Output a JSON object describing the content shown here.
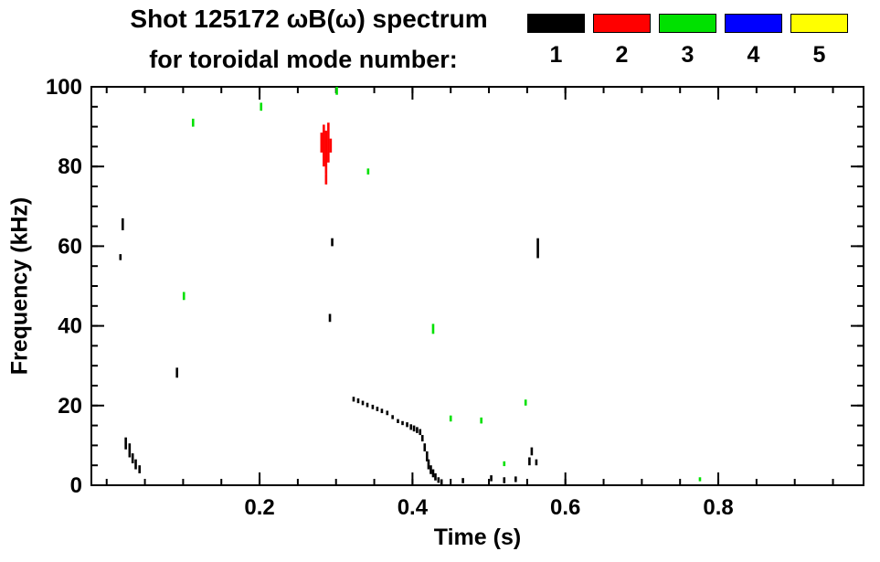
{
  "header": {
    "title_line1": "Shot 125172 ωB(ω) spectrum",
    "title_line2": "for toroidal mode number:"
  },
  "legend": {
    "entries": [
      {
        "label": "1",
        "color": "#000000"
      },
      {
        "label": "2",
        "color": "#ff0000"
      },
      {
        "label": "3",
        "color": "#00e100"
      },
      {
        "label": "4",
        "color": "#0000ff"
      },
      {
        "label": "5",
        "color": "#ffff00"
      }
    ]
  },
  "chart_data": {
    "type": "scatter",
    "title": "Shot 125172 ωB(ω) spectrum for toroidal mode number: 1 2 3 4 5",
    "xlabel": "Time (s)",
    "ylabel": "Frequency (kHz)",
    "xlim": [
      -0.02,
      0.99
    ],
    "ylim": [
      0,
      100
    ],
    "xticks": [
      0.2,
      0.4,
      0.6,
      0.8
    ],
    "xtick_labels": [
      "0.2",
      "0.4",
      "0.6",
      "0.8"
    ],
    "x_minor_step": 0.05,
    "yticks": [
      0,
      20,
      40,
      60,
      80,
      100
    ],
    "ytick_labels": [
      "0",
      "20",
      "40",
      "60",
      "80",
      "100"
    ],
    "y_minor_step": 5,
    "grid": false,
    "legend_position": "top-right",
    "segment_format": "[time_s, freq_low_kHz, freq_high_kHz]",
    "series": [
      {
        "mode": 1,
        "name": "1",
        "color": "#000000",
        "segments": [
          [
            0.021,
            64,
            67
          ],
          [
            0.018,
            56.5,
            58
          ],
          [
            0.025,
            9,
            12
          ],
          [
            0.03,
            7,
            10.5
          ],
          [
            0.034,
            5.5,
            8
          ],
          [
            0.038,
            4,
            6.5
          ],
          [
            0.043,
            3,
            5
          ],
          [
            0.092,
            27,
            29.5
          ],
          [
            0.292,
            41,
            43
          ],
          [
            0.295,
            60,
            62
          ],
          [
            0.323,
            21,
            22.2
          ],
          [
            0.329,
            20.6,
            21.8
          ],
          [
            0.335,
            20.1,
            21.2
          ],
          [
            0.341,
            19.6,
            20.7
          ],
          [
            0.348,
            19.1,
            20.2
          ],
          [
            0.354,
            18.6,
            19.7
          ],
          [
            0.36,
            18.1,
            19.2
          ],
          [
            0.367,
            17.6,
            18.7
          ],
          [
            0.374,
            16.6,
            17.6
          ],
          [
            0.381,
            15.6,
            16.6
          ],
          [
            0.387,
            15.1,
            16.1
          ],
          [
            0.393,
            14.6,
            15.8
          ],
          [
            0.398,
            13.9,
            15.3
          ],
          [
            0.402,
            13.5,
            15.0
          ],
          [
            0.406,
            13.1,
            14.6
          ],
          [
            0.41,
            12.6,
            14.1
          ],
          [
            0.413,
            11.0,
            12.6
          ],
          [
            0.416,
            8.5,
            10.5
          ],
          [
            0.419,
            6.0,
            8.5
          ],
          [
            0.421,
            4.0,
            6.5
          ],
          [
            0.424,
            2.8,
            5.0
          ],
          [
            0.427,
            2.0,
            4.0
          ],
          [
            0.43,
            1.2,
            3.0
          ],
          [
            0.434,
            0.6,
            2.0
          ],
          [
            0.438,
            0.2,
            1.5
          ],
          [
            0.466,
            0.5,
            1.8
          ],
          [
            0.503,
            1.0,
            2.5
          ],
          [
            0.52,
            0.5,
            2.0
          ],
          [
            0.535,
            0.8,
            2.2
          ],
          [
            0.553,
            5.0,
            7.0
          ],
          [
            0.556,
            7.5,
            9.5
          ],
          [
            0.562,
            5.0,
            6.5
          ],
          [
            0.564,
            57.0,
            62.0
          ]
        ]
      },
      {
        "mode": 2,
        "name": "2",
        "color": "#ff0000",
        "segments": [
          [
            0.281,
            83.5,
            88.5
          ],
          [
            0.284,
            80,
            90.5
          ],
          [
            0.287,
            78,
            89
          ],
          [
            0.29,
            81,
            91
          ],
          [
            0.293,
            83.5,
            87
          ],
          [
            0.287,
            75.5,
            78
          ]
        ]
      },
      {
        "mode": 3,
        "name": "3",
        "color": "#00e100",
        "segments": [
          [
            0.113,
            90,
            92
          ],
          [
            0.202,
            94,
            96
          ],
          [
            0.301,
            98,
            100
          ],
          [
            0.342,
            78,
            79.5
          ],
          [
            0.101,
            46.5,
            48.5
          ],
          [
            0.427,
            38,
            40.5
          ],
          [
            0.45,
            16,
            17.5
          ],
          [
            0.49,
            15.5,
            17
          ],
          [
            0.548,
            20,
            21.5
          ],
          [
            0.52,
            4.8,
            6
          ],
          [
            0.776,
            1,
            2
          ]
        ]
      },
      {
        "mode": 4,
        "name": "4",
        "color": "#0000ff",
        "segments": []
      },
      {
        "mode": 5,
        "name": "5",
        "color": "#ffff00",
        "segments": []
      }
    ]
  }
}
